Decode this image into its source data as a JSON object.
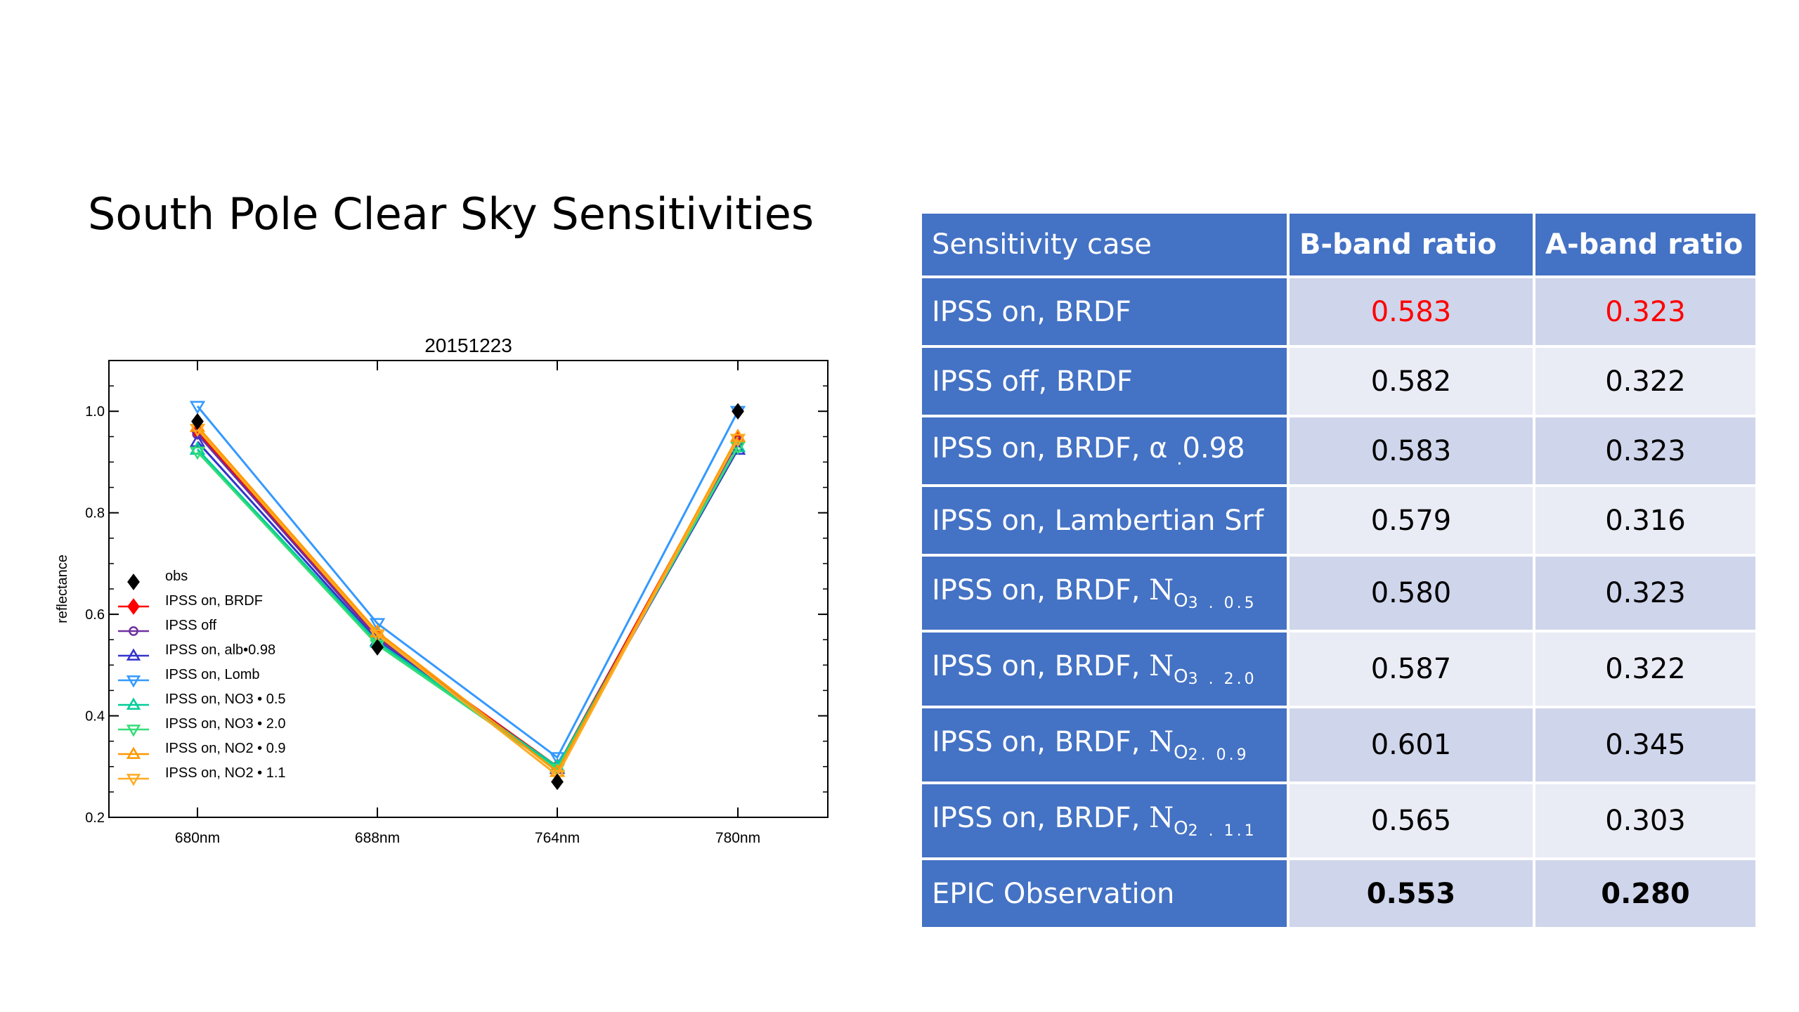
{
  "slide_title": "South Pole Clear Sky Sensitivities",
  "chart_data": {
    "type": "line",
    "title": "20151223",
    "xlabel": "",
    "ylabel": "reflectance",
    "categories": [
      "680nm",
      "688nm",
      "764nm",
      "780nm"
    ],
    "ylim": [
      0.2,
      1.1
    ],
    "yticks": [
      "0.2",
      "0.4",
      "0.6",
      "0.8",
      "1.0"
    ],
    "legend_position": "center-left",
    "series": [
      {
        "name": "obs",
        "color": "#000000",
        "marker": "diamond",
        "line": false,
        "values": [
          0.98,
          0.535,
          0.27,
          1.0
        ]
      },
      {
        "name": "IPSS on, BRDF",
        "color": "#ff0000",
        "marker": "diamond",
        "line": true,
        "values": [
          0.96,
          0.555,
          0.3,
          0.945
        ]
      },
      {
        "name": "IPSS off",
        "color": "#7030a0",
        "marker": "circle",
        "line": true,
        "values": [
          0.955,
          0.553,
          0.298,
          0.94
        ]
      },
      {
        "name": "IPSS on, alb•0.98",
        "color": "#3333cc",
        "marker": "triangle-up",
        "line": true,
        "values": [
          0.94,
          0.548,
          0.296,
          0.925
        ]
      },
      {
        "name": "IPSS on, Lomb",
        "color": "#3399ff",
        "marker": "triangle-down",
        "line": true,
        "values": [
          1.01,
          0.582,
          0.318,
          1.0
        ]
      },
      {
        "name": "IPSS on, NO3 • 0.5",
        "color": "#00cc99",
        "marker": "triangle-up",
        "line": true,
        "values": [
          0.925,
          0.545,
          0.3,
          0.93
        ]
      },
      {
        "name": "IPSS on, NO3 • 2.0",
        "color": "#33dd77",
        "marker": "triangle-down",
        "line": true,
        "values": [
          0.92,
          0.54,
          0.295,
          0.93
        ]
      },
      {
        "name": "IPSS on, NO2 • 0.9",
        "color": "#ff9900",
        "marker": "triangle-up",
        "line": true,
        "values": [
          0.97,
          0.565,
          0.29,
          0.95
        ]
      },
      {
        "name": "IPSS on, NO2 • 1.1",
        "color": "#ffaa22",
        "marker": "triangle-down",
        "line": true,
        "values": [
          0.965,
          0.56,
          0.283,
          0.945
        ]
      }
    ]
  },
  "table": {
    "headers": [
      "Sensitivity case",
      "B-band ratio",
      "A-band ratio"
    ],
    "rows": [
      {
        "case": "IPSS on, BRDF",
        "b": "0.583",
        "a": "0.323",
        "highlight": "#ff0000"
      },
      {
        "case": "IPSS off, BRDF",
        "b": "0.582",
        "a": "0.322"
      },
      {
        "case_prefix": "IPSS on, BRDF, α",
        "case_sub": ".",
        "case_suffix": "0.98",
        "b": "0.583",
        "a": "0.323"
      },
      {
        "case": "IPSS on, Lambertian Srf",
        "b": "0.579",
        "a": "0.316"
      },
      {
        "case_prefix": "IPSS on, BRDF, ",
        "case_n": "N",
        "case_gas": "O",
        "case_gas_sub": "3",
        "case_factor": " . 0.5",
        "b": "0.580",
        "a": "0.323"
      },
      {
        "case_prefix": "IPSS on, BRDF, ",
        "case_n": "N",
        "case_gas": "O",
        "case_gas_sub": "3",
        "case_factor": " . 2.0",
        "b": "0.587",
        "a": "0.322"
      },
      {
        "case_prefix": "IPSS on, BRDF, ",
        "case_n": "N",
        "case_gas": "O",
        "case_gas_sub": "2",
        "case_factor": ". 0.9",
        "b": "0.601",
        "a": "0.345"
      },
      {
        "case_prefix": "IPSS on, BRDF, ",
        "case_n": "N",
        "case_gas": "O",
        "case_gas_sub": "2",
        "case_factor": " . 1.1",
        "b": "0.565",
        "a": "0.303"
      },
      {
        "case": "EPIC Observation",
        "b": "0.553",
        "a": "0.280"
      }
    ]
  }
}
